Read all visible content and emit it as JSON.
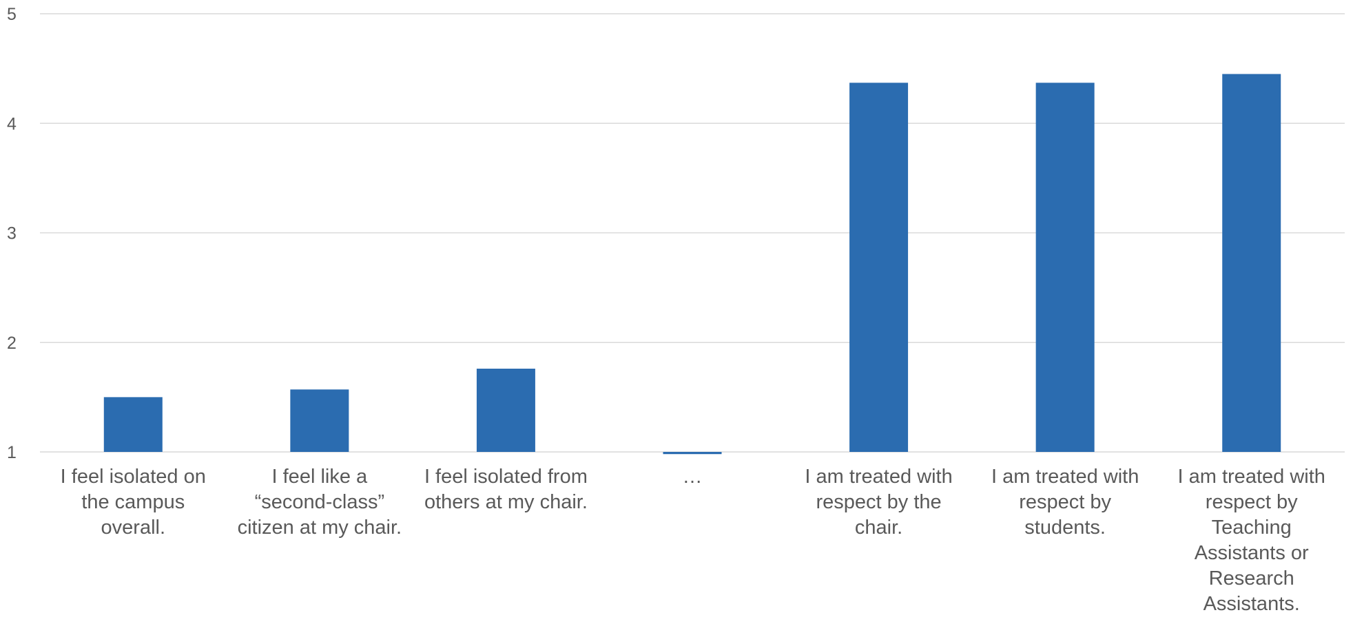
{
  "chart_data": {
    "type": "bar",
    "categories": [
      "I feel isolated on\nthe campus\noverall.",
      "I feel like a\n“second-class”\ncitizen at my chair.",
      "I feel isolated from\nothers at my chair.",
      "…",
      "I am treated with\nrespect by the\nchair.",
      "I am treated with\nrespect by\nstudents.",
      "I am treated with\nrespect by\nTeaching\nAssistants or\nResearch\nAssistants."
    ],
    "values": [
      1.5,
      1.57,
      1.76,
      0.98,
      4.37,
      4.37,
      4.45
    ],
    "ylim": [
      1,
      5
    ],
    "yticks": [
      "1",
      "2",
      "3",
      "4",
      "5"
    ],
    "grid": true,
    "title": "",
    "xlabel": "",
    "ylabel": "",
    "colors": {
      "bar": "#2B6CB0",
      "grid": "#D9D9D9",
      "text": "#595959"
    }
  }
}
